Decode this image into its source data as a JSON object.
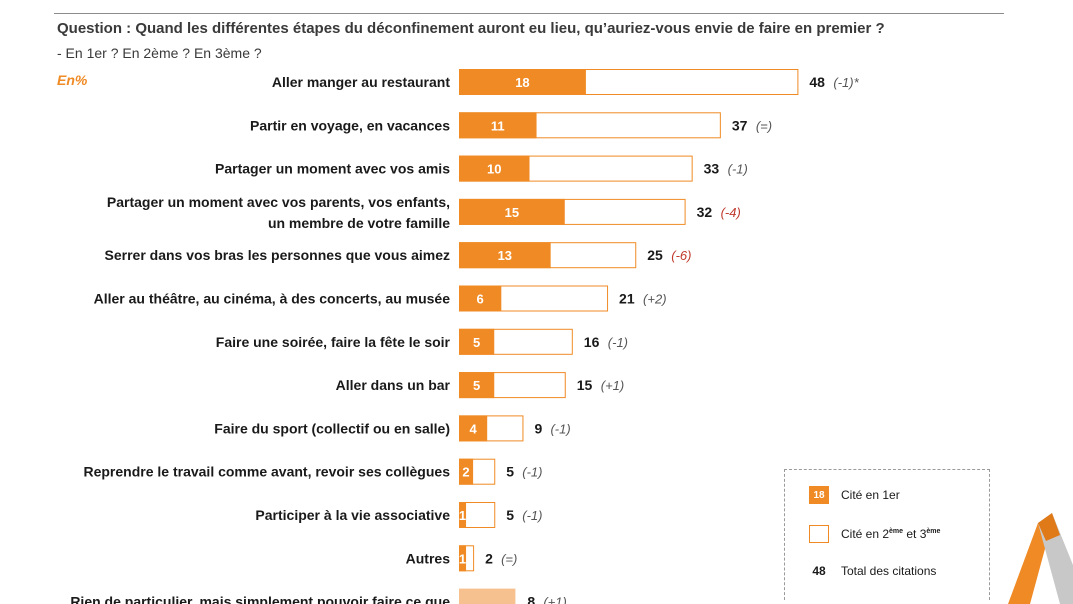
{
  "header": {
    "question": "Question : Quand les différentes étapes du déconfinement auront eu lieu, qu’auriez-vous envie de faire en premier ?",
    "subquestion": "- En 1er ? En 2ème ? En 3ème ?",
    "unit": "En%"
  },
  "chart_data": {
    "type": "bar",
    "orientation": "horizontal",
    "stacked_overlay": true,
    "categories": [
      [
        "Aller manger au restaurant"
      ],
      [
        "Partir en voyage, en vacances"
      ],
      [
        "Partager un moment avec vos amis"
      ],
      [
        "Partager un moment avec vos parents, vos enfants,",
        "un membre de votre famille"
      ],
      [
        "Serrer dans vos bras les personnes que vous aimez"
      ],
      [
        "Aller au théâtre, au cinéma, à des concerts, au musée"
      ],
      [
        "Faire une soirée, faire la fête le soir"
      ],
      [
        "Aller dans un bar"
      ],
      [
        "Faire du sport (collectif ou en salle)"
      ],
      [
        "Reprendre le travail comme avant, revoir ses collègues"
      ],
      [
        "Participer à la vie associative"
      ],
      [
        "Autres"
      ],
      [
        "Rien de particulier, mais simplement pouvoir faire ce que"
      ]
    ],
    "series": [
      {
        "name": "Cité en 1er",
        "values": [
          18,
          11,
          10,
          15,
          13,
          6,
          5,
          5,
          4,
          2,
          1,
          1,
          null
        ]
      },
      {
        "name": "Total des citations",
        "values": [
          48,
          37,
          33,
          32,
          25,
          21,
          16,
          15,
          9,
          5,
          5,
          2,
          8
        ]
      }
    ],
    "deltas": [
      "(-1)*",
      "(=)",
      "(-1)",
      "(-4)",
      "(-6)",
      "(+2)",
      "(-1)",
      "(+1)",
      "(-1)",
      "(-1)",
      "(-1)",
      "(=)",
      "(+1)"
    ],
    "delta_colors": [
      "#555555",
      "#555555",
      "#555555",
      "#c0392b",
      "#c0392b",
      "#555555",
      "#555555",
      "#555555",
      "#555555",
      "#555555",
      "#555555",
      "#555555",
      "#555555"
    ],
    "colors": {
      "first": "#f08a24",
      "total_border": "#f08a24",
      "other_fill": "#f6c08f"
    }
  },
  "legend": {
    "first_sample": "18",
    "first_label": "Cité en 1er",
    "other_label_pre": "Cité en 2",
    "other_sup1": "ème",
    "other_label_mid": " et 3",
    "other_sup2": "ème",
    "total_sample": "48",
    "total_label": "Total des citations"
  },
  "logo": {
    "colors": [
      "#f08a24",
      "#c8c8c8"
    ]
  }
}
